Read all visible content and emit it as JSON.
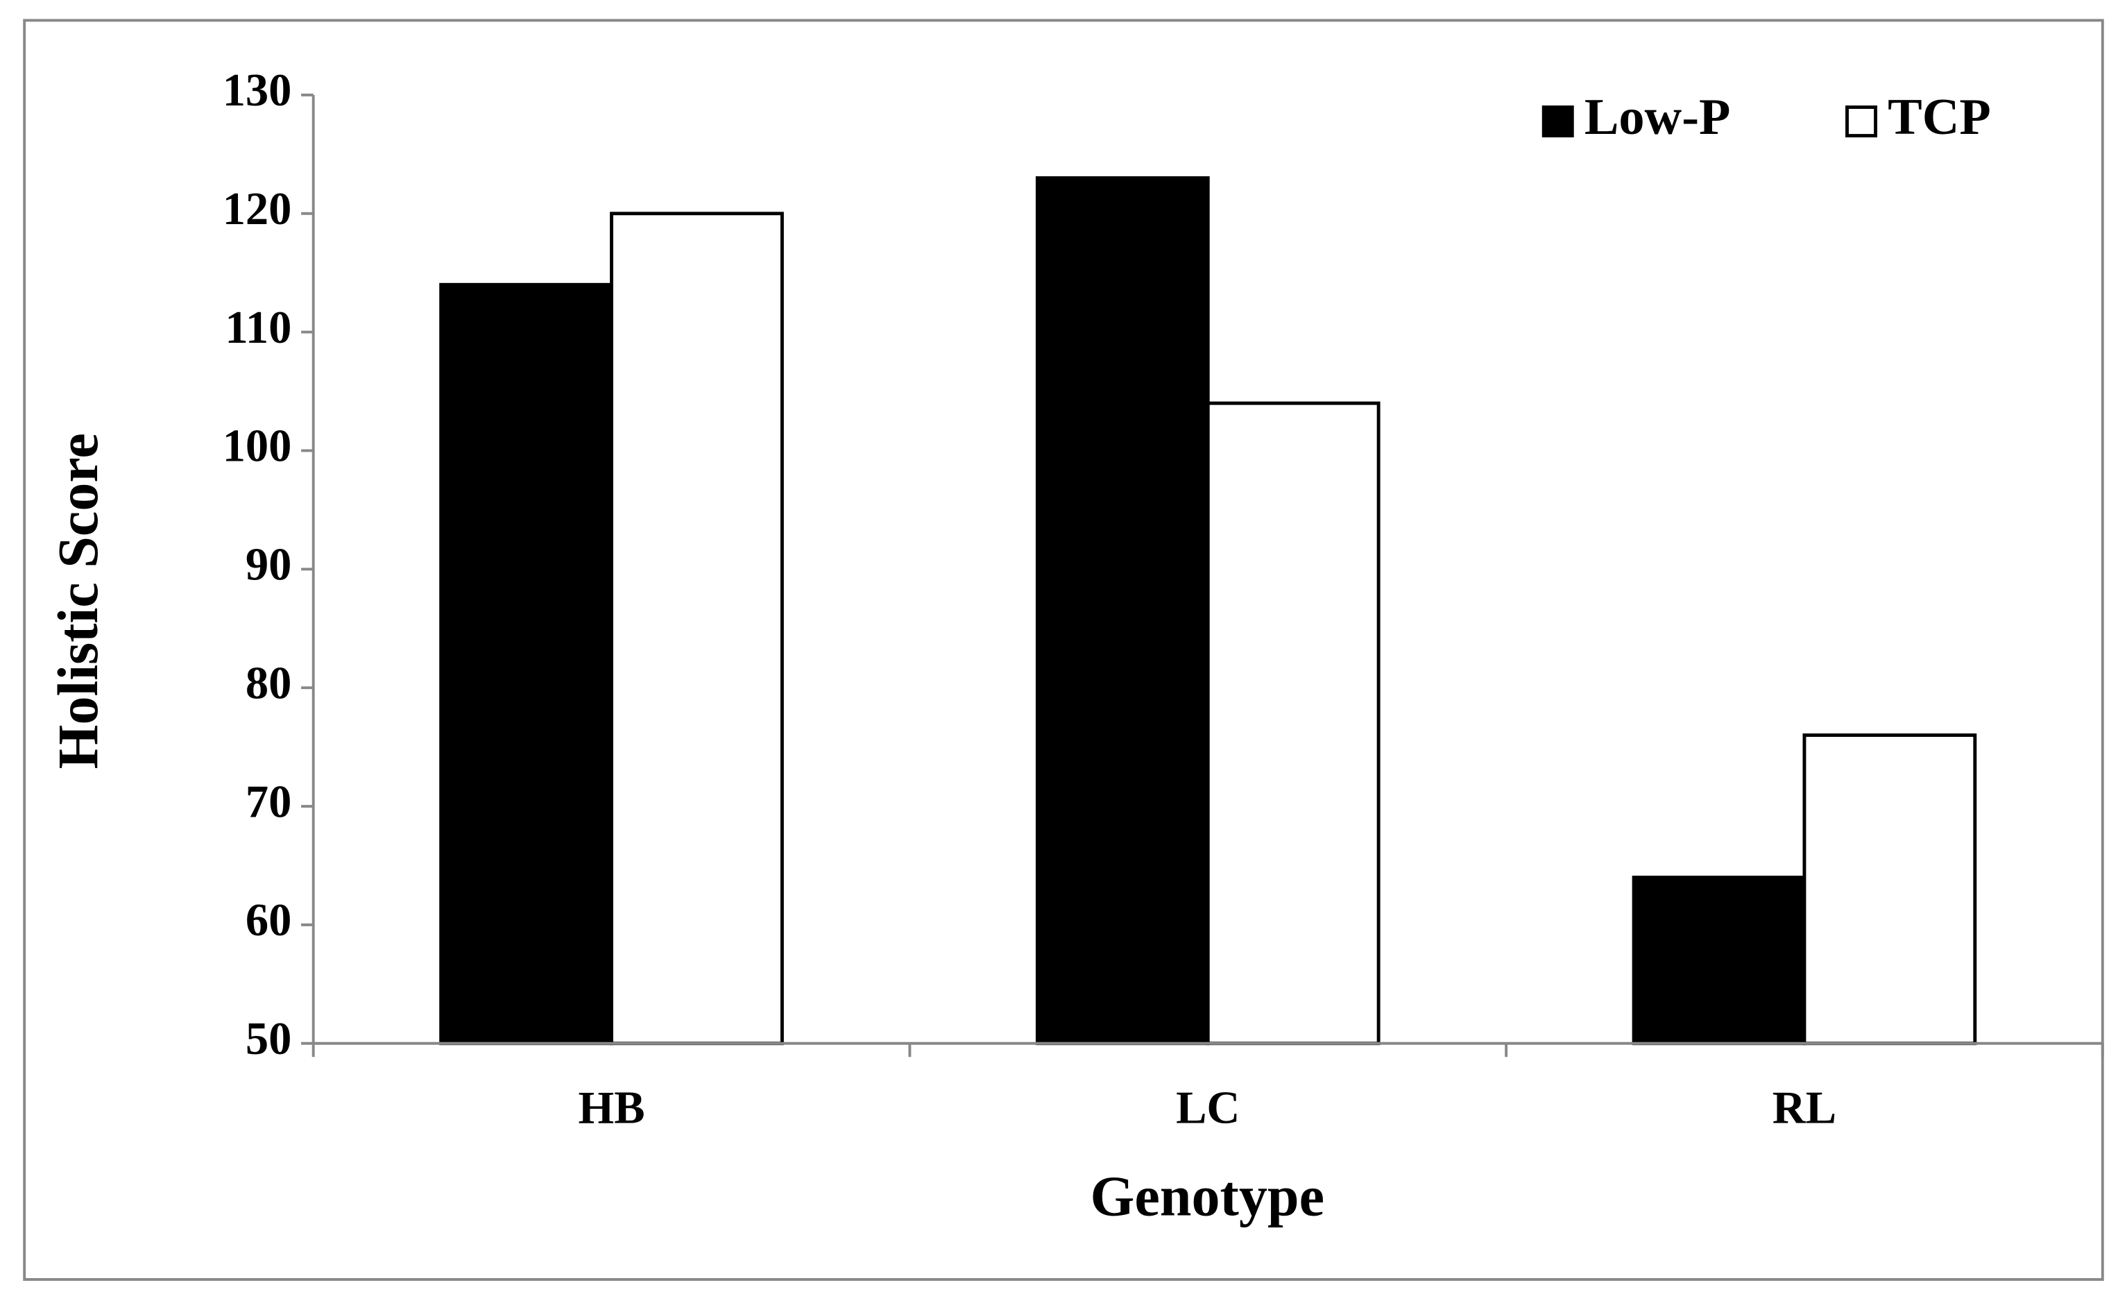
{
  "chart_data": {
    "type": "bar",
    "x_label": "Genotype",
    "y_label": "Holistic Score",
    "categories": [
      "HB",
      "LC",
      "RL"
    ],
    "series": [
      {
        "name": "Low-P",
        "color": "#000000",
        "values": [
          114,
          123,
          64
        ]
      },
      {
        "name": "TCP",
        "color": "#ffffff",
        "values": [
          120,
          104,
          76
        ]
      }
    ],
    "edgecolor": "#000000",
    "ylim": [
      50,
      130
    ],
    "yticks": [
      50,
      60,
      70,
      80,
      90,
      100,
      110,
      120,
      130
    ],
    "grid": false,
    "legend": "top-right"
  }
}
